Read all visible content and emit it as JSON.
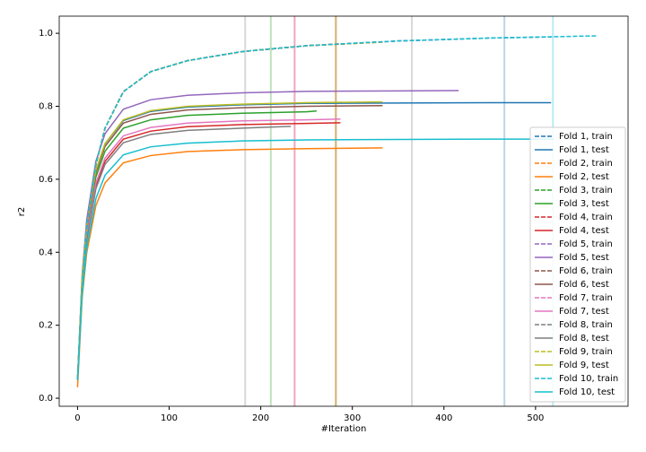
{
  "chart_data": {
    "type": "line",
    "xlabel": "#Iteration",
    "ylabel": "r2",
    "xlim": [
      -20,
      601
    ],
    "ylim": [
      -0.022,
      1.047
    ],
    "xticks": [
      0,
      100,
      200,
      300,
      400,
      500
    ],
    "yticks": [
      {
        "value": 0,
        "label": "0.0"
      },
      {
        "value": 0.2,
        "label": "0.2"
      },
      {
        "value": 0.4,
        "label": "0.4"
      },
      {
        "value": 0.6,
        "label": "0.6"
      },
      {
        "value": 0.8,
        "label": "0.8"
      },
      {
        "value": 1,
        "label": "1.0"
      }
    ],
    "legend": "lower right",
    "vlines": [
      466,
      282,
      211,
      237,
      365,
      282,
      237,
      183,
      282,
      519
    ],
    "vline_colors": [
      "#1f77b4",
      "#ff7f0e",
      "#2ca02c",
      "#d62728",
      "#7f7f7f",
      "#8c564b",
      "#e377c2",
      "#7f7f7f",
      "#bcbd22",
      "#17becf"
    ],
    "series": [
      {
        "name": "Fold 1, train",
        "color": "#1f77b4",
        "dashed": true,
        "x": [
          0,
          5,
          10,
          20,
          30,
          50,
          80,
          120,
          180,
          250,
          350,
          450,
          517
        ],
        "values": [
          0.05,
          0.3,
          0.47,
          0.64,
          0.74,
          0.84,
          0.895,
          0.925,
          0.95,
          0.966,
          0.979,
          0.987,
          0.99
        ]
      },
      {
        "name": "Fold 1, test",
        "color": "#1f77b4",
        "dashed": false,
        "x": [
          0,
          5,
          10,
          20,
          30,
          50,
          80,
          120,
          180,
          250,
          350,
          450,
          517
        ],
        "values": [
          0.05,
          0.324,
          0.47,
          0.624,
          0.697,
          0.761,
          0.786,
          0.798,
          0.804,
          0.808,
          0.809,
          0.81,
          0.81
        ]
      },
      {
        "name": "Fold 2, train",
        "color": "#ff7f0e",
        "dashed": true,
        "x": [
          0,
          5,
          10,
          20,
          30,
          50,
          80,
          120,
          180,
          250,
          333
        ],
        "values": [
          0.05,
          0.3,
          0.47,
          0.64,
          0.74,
          0.84,
          0.895,
          0.925,
          0.95,
          0.966,
          0.976
        ]
      },
      {
        "name": "Fold 2, test",
        "color": "#ff7f0e",
        "dashed": false,
        "x": [
          0,
          5,
          10,
          20,
          30,
          50,
          80,
          120,
          180,
          250,
          333
        ],
        "values": [
          0.03,
          0.274,
          0.398,
          0.528,
          0.59,
          0.645,
          0.665,
          0.676,
          0.681,
          0.684,
          0.686
        ]
      },
      {
        "name": "Fold 3, train",
        "color": "#2ca02c",
        "dashed": true,
        "x": [
          0,
          5,
          10,
          20,
          30,
          50,
          80,
          120,
          180,
          250,
          261
        ],
        "values": [
          0.05,
          0.3,
          0.47,
          0.64,
          0.74,
          0.84,
          0.895,
          0.925,
          0.95,
          0.966,
          0.968
        ]
      },
      {
        "name": "Fold 3, test",
        "color": "#2ca02c",
        "dashed": false,
        "x": [
          0,
          5,
          10,
          20,
          30,
          50,
          80,
          120,
          180,
          250,
          261
        ],
        "values": [
          0.05,
          0.315,
          0.456,
          0.606,
          0.677,
          0.74,
          0.763,
          0.775,
          0.781,
          0.785,
          0.787
        ]
      },
      {
        "name": "Fold 4, train",
        "color": "#d62728",
        "dashed": true,
        "x": [
          0,
          5,
          10,
          20,
          30,
          50,
          80,
          120,
          180,
          250,
          287
        ],
        "values": [
          0.05,
          0.3,
          0.47,
          0.64,
          0.74,
          0.84,
          0.895,
          0.925,
          0.95,
          0.966,
          0.971
        ]
      },
      {
        "name": "Fold 4, test",
        "color": "#d62728",
        "dashed": false,
        "x": [
          0,
          5,
          10,
          20,
          30,
          50,
          80,
          120,
          180,
          250,
          287
        ],
        "values": [
          0.05,
          0.302,
          0.438,
          0.581,
          0.649,
          0.71,
          0.732,
          0.744,
          0.75,
          0.753,
          0.755
        ]
      },
      {
        "name": "Fold 5, train",
        "color": "#9467bd",
        "dashed": true,
        "x": [
          0,
          5,
          10,
          20,
          30,
          50,
          80,
          120,
          180,
          250,
          350,
          416
        ],
        "values": [
          0.05,
          0.3,
          0.47,
          0.64,
          0.74,
          0.84,
          0.895,
          0.925,
          0.95,
          0.966,
          0.979,
          0.984
        ]
      },
      {
        "name": "Fold 5, test",
        "color": "#9467bd",
        "dashed": false,
        "x": [
          0,
          5,
          10,
          20,
          30,
          50,
          80,
          120,
          180,
          250,
          350,
          416
        ],
        "values": [
          0.05,
          0.337,
          0.489,
          0.649,
          0.725,
          0.792,
          0.818,
          0.83,
          0.837,
          0.841,
          0.842,
          0.843
        ]
      },
      {
        "name": "Fold 6, train",
        "color": "#8c564b",
        "dashed": true,
        "x": [
          0,
          5,
          10,
          20,
          30,
          50,
          80,
          120,
          180,
          250,
          333
        ],
        "values": [
          0.05,
          0.3,
          0.47,
          0.64,
          0.74,
          0.84,
          0.895,
          0.925,
          0.95,
          0.966,
          0.976
        ]
      },
      {
        "name": "Fold 6, test",
        "color": "#8c564b",
        "dashed": false,
        "x": [
          0,
          5,
          10,
          20,
          30,
          50,
          80,
          120,
          180,
          250,
          333
        ],
        "values": [
          0.05,
          0.321,
          0.465,
          0.618,
          0.69,
          0.754,
          0.778,
          0.79,
          0.796,
          0.8,
          0.802
        ]
      },
      {
        "name": "Fold 7, train",
        "color": "#e377c2",
        "dashed": true,
        "x": [
          0,
          5,
          10,
          20,
          30,
          50,
          80,
          120,
          180,
          250,
          287
        ],
        "values": [
          0.05,
          0.3,
          0.47,
          0.64,
          0.74,
          0.84,
          0.895,
          0.925,
          0.95,
          0.966,
          0.971
        ]
      },
      {
        "name": "Fold 7, test",
        "color": "#e377c2",
        "dashed": false,
        "x": [
          0,
          5,
          10,
          20,
          30,
          50,
          80,
          120,
          180,
          250,
          287
        ],
        "values": [
          0.05,
          0.306,
          0.444,
          0.589,
          0.658,
          0.719,
          0.742,
          0.754,
          0.76,
          0.763,
          0.765
        ]
      },
      {
        "name": "Fold 8, train",
        "color": "#7f7f7f",
        "dashed": true,
        "x": [
          0,
          5,
          10,
          20,
          30,
          50,
          80,
          120,
          180,
          233
        ],
        "values": [
          0.05,
          0.3,
          0.47,
          0.64,
          0.74,
          0.84,
          0.895,
          0.925,
          0.95,
          0.962
        ]
      },
      {
        "name": "Fold 8, test",
        "color": "#7f7f7f",
        "dashed": false,
        "x": [
          0,
          5,
          10,
          20,
          30,
          50,
          80,
          120,
          180,
          233
        ],
        "values": [
          0.05,
          0.298,
          0.432,
          0.574,
          0.641,
          0.7,
          0.723,
          0.734,
          0.74,
          0.745
        ]
      },
      {
        "name": "Fold 9, train",
        "color": "#bcbd22",
        "dashed": true,
        "x": [
          0,
          5,
          10,
          20,
          30,
          50,
          80,
          120,
          180,
          250,
          333
        ],
        "values": [
          0.05,
          0.3,
          0.47,
          0.64,
          0.74,
          0.84,
          0.895,
          0.925,
          0.95,
          0.966,
          0.976
        ]
      },
      {
        "name": "Fold 9, test",
        "color": "#bcbd22",
        "dashed": false,
        "x": [
          0,
          5,
          10,
          20,
          30,
          50,
          80,
          120,
          180,
          250,
          333
        ],
        "values": [
          0.05,
          0.325,
          0.471,
          0.625,
          0.698,
          0.763,
          0.788,
          0.8,
          0.806,
          0.81,
          0.812
        ]
      },
      {
        "name": "Fold 10, train",
        "color": "#17becf",
        "dashed": true,
        "x": [
          0,
          5,
          10,
          20,
          30,
          50,
          80,
          120,
          180,
          250,
          350,
          450,
          568
        ],
        "values": [
          0.05,
          0.3,
          0.47,
          0.64,
          0.74,
          0.84,
          0.895,
          0.925,
          0.95,
          0.966,
          0.979,
          0.987,
          0.993
        ]
      },
      {
        "name": "Fold 10, test",
        "color": "#17becf",
        "dashed": false,
        "x": [
          0,
          5,
          10,
          20,
          30,
          50,
          80,
          120,
          180,
          250,
          350,
          450,
          520
        ],
        "values": [
          0.05,
          0.284,
          0.412,
          0.547,
          0.611,
          0.667,
          0.689,
          0.699,
          0.705,
          0.708,
          0.709,
          0.71,
          0.71
        ]
      }
    ]
  }
}
